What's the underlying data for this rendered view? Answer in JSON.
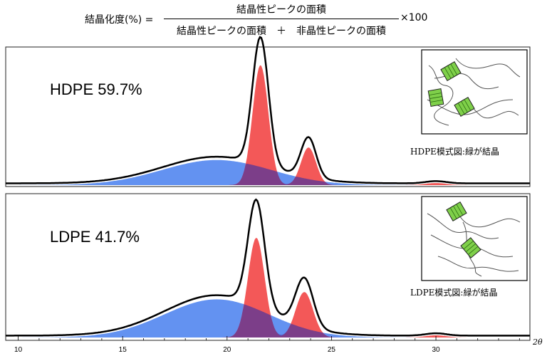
{
  "formula": {
    "lhs": "結晶化度(%) =",
    "numerator": "結晶性ピークの面積",
    "denominator": "結晶性ピークの面積　＋　非晶性ピークの面積",
    "multiplier": "×100"
  },
  "chart_data": [
    {
      "type": "area",
      "label": "HDPE   59.7%",
      "inset_caption": "HDPE模式図:緑が結晶",
      "series": [
        {
          "kind": "amorphous",
          "color": "#5b8cf0",
          "center": 19.5,
          "amp": 0.18,
          "width": 2.6
        },
        {
          "kind": "crystalline",
          "color": "#f24646",
          "center": 21.6,
          "amp": 0.86,
          "width": 0.38
        },
        {
          "kind": "crystalline",
          "color": "#f24646",
          "center": 23.9,
          "amp": 0.27,
          "width": 0.36
        },
        {
          "kind": "crystalline",
          "color": "#f24646",
          "center": 30.0,
          "amp": 0.015,
          "width": 0.5
        }
      ],
      "total_color": "#000000"
    },
    {
      "type": "area",
      "label": "LDPE   41.7%",
      "inset_caption": "LDPE模式図:緑が結晶",
      "series": [
        {
          "kind": "amorphous",
          "color": "#5b8cf0",
          "center": 19.5,
          "amp": 0.26,
          "width": 2.5
        },
        {
          "kind": "crystalline",
          "color": "#f24646",
          "center": 21.4,
          "amp": 0.68,
          "width": 0.4
        },
        {
          "kind": "crystalline",
          "color": "#f24646",
          "center": 23.7,
          "amp": 0.31,
          "width": 0.42
        },
        {
          "kind": "crystalline",
          "color": "#f24646",
          "center": 30.0,
          "amp": 0.015,
          "width": 0.5
        }
      ],
      "total_color": "#000000"
    }
  ],
  "x_axis": {
    "xlim": [
      9.4,
      34.5
    ],
    "ticks": [
      10,
      15,
      20,
      25,
      30
    ],
    "tick_labels": [
      "10",
      "15",
      "20",
      "25",
      "30"
    ],
    "label": "2θ"
  }
}
